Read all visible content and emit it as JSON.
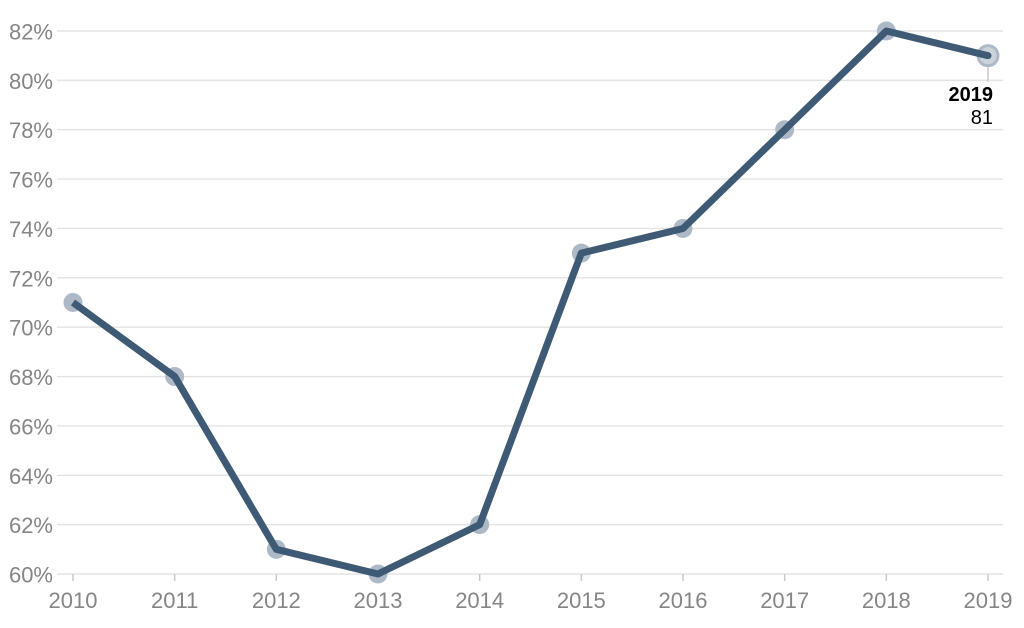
{
  "chart_data": {
    "type": "line",
    "title": "",
    "xlabel": "",
    "ylabel": "",
    "x": [
      "2010",
      "2011",
      "2012",
      "2013",
      "2014",
      "2015",
      "2016",
      "2017",
      "2018",
      "2019"
    ],
    "series": [
      {
        "name": "value",
        "values": [
          71,
          68,
          61,
          60,
          62,
          73,
          74,
          78,
          82,
          81
        ]
      }
    ],
    "ylim": [
      60,
      82
    ],
    "ytick_step": 2,
    "yticks": [
      "60%",
      "62%",
      "64%",
      "66%",
      "68%",
      "70%",
      "72%",
      "74%",
      "76%",
      "78%",
      "80%",
      "82%"
    ],
    "grid": "horizontal",
    "legend": "none",
    "annotation": {
      "label": "2019",
      "value": "81"
    },
    "colors": {
      "line": "#3e5a74",
      "marker": "#aeb9c7",
      "end_marker_fill": "#cbd2da",
      "grid": "#e3e3e3",
      "tick": "#c9c9c9",
      "axis_label": "#858585",
      "connector": "#c8c8c8",
      "annotation_text": "#000000",
      "background": "#ffffff"
    }
  }
}
